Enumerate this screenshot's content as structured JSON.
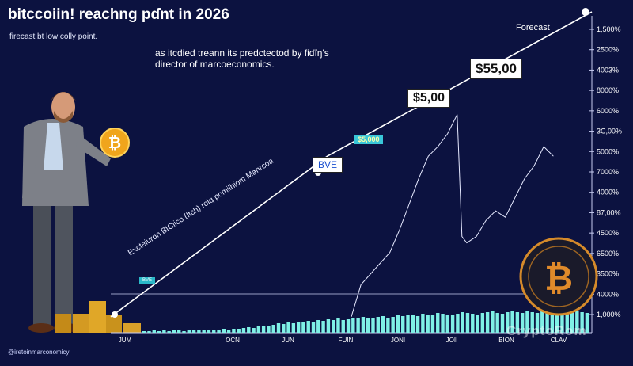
{
  "header": {
    "title": "bitccoiin! reachng pɗnt in 2026",
    "subtitle": "firecast bt low colly point.",
    "blurb": "as itcdied treann its predctectod by fidïŋ's director of marcoeconomics."
  },
  "footer": {
    "handle": "@iretoinmarconomicy"
  },
  "forecast_label": "Forecast",
  "watermark": "CryptoRom",
  "callouts": {
    "top": "$55,00",
    "mid": "$5,00",
    "small_tag": "$5,000",
    "bve": "BVE",
    "left_tag": "BVE",
    "diagonal": "Excteiuron BtCiico (Itch) roiq pomilhiom Manrcoa"
  },
  "chart_data": {
    "type": "line",
    "title": "bitccoiin! reachng pɗnt in 2026",
    "x_tick_labels": [
      "JUM",
      "OCN",
      "JUN",
      "FUIN",
      "JONI",
      "JOII",
      "BION",
      "CLAV"
    ],
    "y_tick_labels": [
      "1,500%",
      "2500%",
      "4003%",
      "8000%",
      "6000%",
      "3C,00%",
      "5000%",
      "7000%",
      "4000%",
      "87,00%",
      "4500%",
      "6500%",
      "3500%",
      "4000%",
      "1,000%"
    ],
    "series": [
      {
        "role": "forecast-line",
        "x": [
          0,
          0.45,
          1.0
        ],
        "y": [
          0.05,
          0.55,
          1.0
        ]
      },
      {
        "role": "price-line",
        "x": [
          0.5,
          0.52,
          0.55,
          0.58,
          0.6,
          0.62,
          0.64,
          0.66,
          0.68,
          0.7,
          0.72,
          0.73,
          0.74,
          0.76,
          0.78,
          0.8,
          0.82,
          0.84,
          0.86,
          0.88,
          0.9,
          0.92
        ],
        "y": [
          0.05,
          0.15,
          0.2,
          0.25,
          0.32,
          0.4,
          0.48,
          0.55,
          0.58,
          0.62,
          0.68,
          0.3,
          0.28,
          0.3,
          0.35,
          0.38,
          0.36,
          0.42,
          0.48,
          0.52,
          0.58,
          0.55
        ]
      }
    ],
    "bars": [
      2,
      2,
      3,
      2,
      3,
      2,
      3,
      3,
      2,
      3,
      4,
      3,
      3,
      4,
      3,
      4,
      5,
      4,
      5,
      5,
      6,
      7,
      6,
      8,
      9,
      8,
      10,
      12,
      11,
      13,
      12,
      14,
      13,
      15,
      14,
      16,
      15,
      17,
      16,
      18,
      16,
      17,
      19,
      18,
      20,
      19,
      18,
      20,
      21,
      19,
      20,
      22,
      21,
      23,
      22,
      21,
      24,
      22,
      23,
      25,
      24,
      22,
      23,
      24,
      26,
      25,
      24,
      23,
      25,
      26,
      27,
      25,
      24,
      26,
      28,
      26,
      25,
      27,
      26,
      25,
      27,
      28,
      26,
      27,
      25,
      26,
      28,
      27,
      26,
      25
    ],
    "baseline_value": "4000%",
    "grid": false,
    "legend": "none"
  },
  "colors": {
    "background": "#0c1240",
    "forecast_line": "#ffffff",
    "price_line": "#e6e9ff",
    "volume_bar": "#7ff0e6",
    "tag": "#39c6d8",
    "coin": "#e8a11c"
  }
}
